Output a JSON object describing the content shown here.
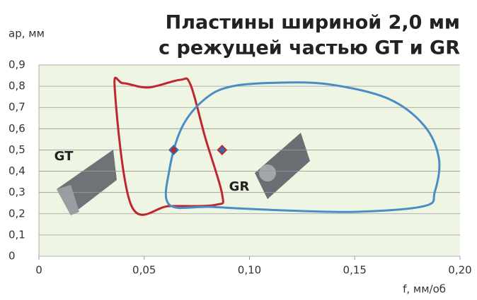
{
  "chart_data": {
    "type": "region",
    "title_lines": [
      "Пластины шириной 2,0 мм",
      "с режущей частью GT и GR"
    ],
    "y_label": "ap, мм",
    "x_label": "f, мм/об",
    "xlim": [
      0,
      0.2
    ],
    "ylim": [
      0,
      0.9
    ],
    "xticks": [
      0,
      {
        "value": 0.05,
        "label": "0,05"
      },
      {
        "value": 0.1,
        "label": "0,10"
      },
      {
        "value": 0.15,
        "label": "0,15"
      },
      {
        "value": 0.2,
        "label": "0,20"
      }
    ],
    "yticks": [
      0,
      {
        "value": 0.1,
        "label": "0,1"
      },
      {
        "value": 0.2,
        "label": "0,2"
      },
      {
        "value": 0.3,
        "label": "0,3"
      },
      {
        "value": 0.4,
        "label": "0,4"
      },
      {
        "value": 0.5,
        "label": "0,5"
      },
      {
        "value": 0.6,
        "label": "0,6"
      },
      {
        "value": 0.7,
        "label": "0,7"
      },
      {
        "value": 0.8,
        "label": "0,8"
      },
      {
        "value": 0.9,
        "label": "0,9"
      }
    ],
    "grid": true,
    "series": [
      {
        "name": "GT",
        "color": "#c0262d",
        "x": [
          0.036,
          0.04,
          0.052,
          0.067,
          0.072,
          0.079,
          0.087,
          0.084,
          0.062,
          0.044
        ],
        "y": [
          0.79,
          0.814,
          0.794,
          0.83,
          0.807,
          0.558,
          0.292,
          0.242,
          0.236,
          0.236
        ]
      },
      {
        "name": "GR",
        "color": "#4a8cc4",
        "x": [
          0.062,
          0.062,
          0.068,
          0.079,
          0.092,
          0.116,
          0.139,
          0.166,
          0.183,
          0.19,
          0.188,
          0.183,
          0.15,
          0.116,
          0.082
        ],
        "y": [
          0.242,
          0.408,
          0.608,
          0.741,
          0.8,
          0.817,
          0.807,
          0.741,
          0.614,
          0.458,
          0.302,
          0.236,
          0.209,
          0.216,
          0.232
        ]
      }
    ],
    "points": {
      "x": [
        0.064,
        0.087
      ],
      "y": [
        0.5,
        0.5
      ],
      "colors": [
        "#c0262d",
        "#2f6db5"
      ]
    }
  }
}
